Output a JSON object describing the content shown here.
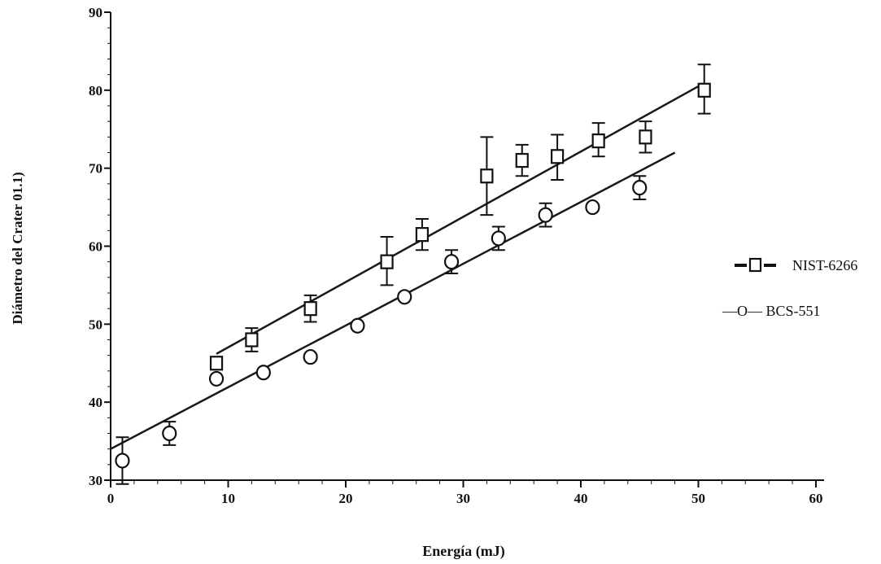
{
  "chart_data": {
    "type": "scatter",
    "xlabel": "Energía (mJ)",
    "ylabel": "Diámetro del Crater 01.1)",
    "xlim": [
      0,
      60
    ],
    "ylim": [
      30,
      90
    ],
    "xticks": [
      "0",
      "10",
      "20",
      "30",
      "40",
      "50",
      "60"
    ],
    "yticks": [
      "30",
      "40",
      "50",
      "60",
      "70",
      "80",
      "90"
    ],
    "legend_position": "right",
    "series": [
      {
        "name": "NIST-6266",
        "legend_label": "-□- NIST-6266",
        "marker": "square",
        "x": [
          9,
          12,
          17,
          23.5,
          26.5,
          32,
          35,
          38,
          41.5,
          45.5,
          50.5
        ],
        "y": [
          45,
          48,
          52,
          58,
          61.5,
          69,
          71,
          71.5,
          73.5,
          74,
          80
        ],
        "err_low": [
          null,
          1.5,
          1.7,
          3,
          2,
          5,
          2,
          3,
          2,
          2,
          3
        ],
        "err_high": [
          null,
          1.5,
          1.7,
          3.2,
          2,
          5,
          2,
          2.8,
          2.3,
          2,
          3.3
        ],
        "fit": {
          "x": [
            9,
            50
          ],
          "y": [
            46.2,
            80.5
          ]
        }
      },
      {
        "name": "BCS-551",
        "legend_label": "—O— BCS-551",
        "marker": "circle",
        "x": [
          1,
          5,
          9,
          13,
          17,
          21,
          25,
          29,
          33,
          37,
          41,
          45
        ],
        "y": [
          32.5,
          36,
          43,
          43.8,
          45.8,
          49.8,
          53.5,
          58,
          61,
          64,
          65,
          67.5
        ],
        "err_low": [
          3,
          1.5,
          null,
          null,
          null,
          null,
          null,
          1.5,
          1.5,
          1.5,
          null,
          1.5
        ],
        "err_high": [
          3,
          1.5,
          null,
          null,
          null,
          null,
          null,
          1.5,
          1.5,
          1.5,
          null,
          1.5
        ],
        "fit": {
          "x": [
            0,
            48
          ],
          "y": [
            34,
            72
          ]
        }
      }
    ]
  }
}
